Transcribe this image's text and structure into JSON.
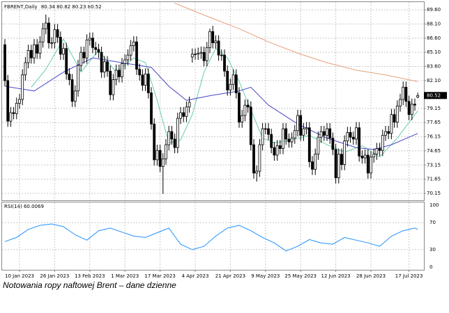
{
  "chart_data": {
    "type": "candlestick",
    "title": "FBRENT,Daily",
    "caption": "Notowania ropy naftowej Brent – dane dzienne",
    "grid": true,
    "up_color": "#ffffff",
    "down_color": "#000000",
    "ylim": [
      69.41,
      90.42
    ],
    "yticks": [
      {
        "value": 89.6,
        "label": "89.60"
      },
      {
        "value": 88.1,
        "label": "88.10"
      },
      {
        "value": 86.6,
        "label": "86.60"
      },
      {
        "value": 85.1,
        "label": "85.10"
      },
      {
        "value": 83.6,
        "label": "83.60"
      },
      {
        "value": 82.1,
        "label": "82.10"
      },
      {
        "value": 79.15,
        "label": "79.15"
      },
      {
        "value": 77.65,
        "label": "77.65"
      },
      {
        "value": 76.15,
        "label": "76.15"
      },
      {
        "value": 74.65,
        "label": "74.65"
      },
      {
        "value": 73.15,
        "label": "73.15"
      },
      {
        "value": 71.65,
        "label": "71.65"
      },
      {
        "value": 70.15,
        "label": "70.15"
      }
    ],
    "xticks": [
      {
        "value": 5,
        "label": "10 Jan 2023"
      },
      {
        "value": 17,
        "label": "26 Jan 2023"
      },
      {
        "value": 29,
        "label": "13 Feb 2023"
      },
      {
        "value": 41,
        "label": "1 Mar 2023"
      },
      {
        "value": 53,
        "label": "17 Mar 2023"
      },
      {
        "value": 65,
        "label": "4 Apr 2023"
      },
      {
        "value": 77,
        "label": "21 Apr 2023"
      },
      {
        "value": 89,
        "label": "9 May 2023"
      },
      {
        "value": 101,
        "label": "25 May 2023"
      },
      {
        "value": 113,
        "label": "12 Jun 2023"
      },
      {
        "value": 125,
        "label": "28 Jun 2023"
      },
      {
        "value": 138,
        "label": "17 Jul 2023"
      }
    ],
    "open": [
      85.9,
      82.1,
      77.8,
      78.7,
      78.6,
      79.7,
      80.1,
      82.7,
      84.0,
      85.3,
      84.5,
      85.9,
      85.0,
      86.2,
      87.6,
      88.2,
      86.1,
      86.1,
      87.5,
      86.7,
      84.9,
      85.5,
      82.8,
      82.2,
      79.9,
      81.0,
      83.7,
      85.1,
      84.5,
      86.4,
      86.6,
      85.6,
      85.4,
      85.1,
      83.0,
      84.1,
      83.1,
      80.6,
      82.2,
      83.2,
      82.5,
      83.9,
      84.3,
      84.8,
      85.8,
      86.2,
      83.3,
      82.7,
      81.6,
      82.8,
      80.8,
      77.5,
      73.7,
      74.7,
      73.0,
      73.8,
      75.3,
      76.7,
      75.9,
      75.0,
      78.1,
      78.7,
      78.3,
      79.3,
      84.6,
      84.9,
      84.9,
      85.0,
      85.1,
      84.2,
      85.6,
      87.3,
      86.1,
      86.3,
      84.8,
      84.8,
      83.1,
      81.1,
      81.7,
      82.7,
      80.8,
      77.7,
      78.4,
      79.5,
      79.3,
      75.3,
      72.3,
      72.5,
      75.3,
      77.0,
      77.0,
      76.4,
      75.0,
      74.2,
      75.2,
      74.9,
      77.0,
      75.9,
      75.6,
      76.0,
      76.8,
      78.4,
      76.3,
      77.0,
      77.1,
      73.5,
      72.7,
      74.3,
      76.1,
      76.7,
      76.3,
      77.0,
      76.0,
      74.8,
      71.8,
      74.3,
      73.2,
      75.7,
      76.6,
      76.1,
      75.9,
      77.1,
      74.1,
      73.9,
      74.2,
      72.3,
      74.0,
      74.3,
      74.9,
      74.7,
      76.3,
      76.7,
      76.5,
      78.5,
      77.7,
      79.4,
      80.1,
      81.4,
      79.9,
      78.5,
      79.6,
      80.34
    ],
    "high": [
      86.5,
      82.7,
      79.3,
      79.3,
      80.3,
      80.7,
      83.3,
      84.6,
      85.9,
      85.9,
      86.5,
      86.5,
      86.8,
      88.2,
      89.1,
      88.8,
      86.7,
      88.1,
      88.1,
      87.3,
      86.1,
      86.1,
      83.4,
      82.8,
      81.6,
      84.3,
      85.7,
      85.7,
      87.0,
      87.2,
      87.2,
      86.2,
      86.0,
      85.7,
      84.7,
      84.7,
      83.7,
      82.8,
      83.8,
      83.8,
      84.5,
      84.9,
      85.4,
      86.4,
      86.8,
      86.8,
      83.9,
      83.3,
      83.4,
      83.4,
      81.4,
      78.1,
      75.3,
      75.3,
      74.4,
      75.9,
      77.3,
      77.3,
      76.5,
      78.7,
      79.3,
      79.3,
      79.9,
      80.4,
      85.5,
      85.5,
      85.6,
      85.7,
      85.7,
      86.2,
      87.6,
      87.9,
      86.9,
      86.9,
      85.4,
      85.4,
      83.7,
      82.3,
      83.3,
      83.3,
      81.4,
      79.0,
      80.1,
      80.1,
      79.9,
      75.9,
      73.1,
      75.9,
      77.6,
      77.6,
      77.6,
      77.0,
      75.6,
      75.8,
      75.8,
      77.6,
      77.6,
      76.5,
      76.6,
      77.4,
      79.0,
      79.0,
      77.6,
      77.7,
      77.7,
      74.1,
      74.9,
      76.7,
      77.3,
      77.3,
      77.6,
      77.6,
      76.6,
      75.4,
      74.9,
      74.9,
      76.3,
      77.2,
      77.2,
      76.7,
      77.7,
      77.7,
      74.7,
      74.8,
      74.8,
      74.6,
      74.9,
      75.5,
      75.5,
      76.9,
      77.3,
      77.3,
      79.1,
      79.1,
      80.0,
      80.7,
      82.0,
      82.0,
      80.5,
      80.2,
      80.2,
      80.82
    ],
    "low": [
      81.5,
      77.2,
      77.2,
      78.0,
      78.0,
      79.1,
      79.5,
      82.1,
      83.4,
      83.9,
      83.9,
      84.4,
      84.4,
      85.6,
      87.0,
      85.5,
      85.5,
      85.5,
      86.1,
      84.3,
      84.3,
      82.2,
      81.6,
      79.3,
      79.3,
      80.4,
      83.1,
      83.9,
      83.9,
      85.8,
      85.0,
      84.8,
      84.5,
      82.4,
      82.4,
      82.5,
      80.0,
      80.0,
      81.6,
      81.9,
      81.9,
      83.3,
      83.7,
      84.2,
      85.2,
      82.7,
      82.1,
      81.0,
      81.0,
      80.2,
      76.9,
      73.1,
      73.1,
      72.4,
      70.1,
      73.2,
      74.7,
      75.3,
      74.4,
      74.4,
      77.5,
      77.7,
      77.7,
      78.7,
      84.0,
      84.3,
      84.3,
      84.4,
      83.6,
      83.6,
      85.0,
      85.5,
      85.5,
      84.2,
      84.2,
      82.5,
      80.5,
      80.5,
      81.1,
      80.2,
      77.1,
      77.1,
      77.8,
      78.7,
      74.7,
      71.7,
      71.4,
      71.9,
      74.7,
      76.4,
      75.8,
      74.4,
      73.6,
      73.6,
      74.3,
      74.3,
      75.3,
      75.0,
      75.0,
      75.4,
      76.2,
      75.7,
      75.7,
      76.4,
      72.9,
      72.1,
      72.1,
      73.7,
      75.5,
      75.7,
      75.7,
      75.4,
      74.2,
      71.2,
      71.2,
      72.6,
      72.6,
      75.1,
      75.5,
      75.3,
      75.3,
      73.5,
      73.3,
      73.3,
      71.7,
      71.7,
      73.4,
      73.7,
      74.1,
      74.1,
      75.7,
      75.9,
      75.9,
      77.1,
      77.1,
      78.8,
      79.5,
      79.3,
      77.9,
      77.9,
      78.9,
      80.23
    ],
    "close": [
      82.1,
      77.8,
      78.7,
      78.6,
      79.7,
      80.1,
      82.7,
      84.0,
      85.3,
      84.5,
      85.9,
      85.0,
      86.2,
      87.6,
      88.2,
      86.1,
      86.1,
      87.5,
      86.7,
      84.9,
      85.5,
      82.8,
      82.2,
      79.9,
      81.0,
      83.7,
      85.1,
      84.5,
      86.4,
      86.6,
      85.6,
      85.4,
      85.1,
      83.0,
      84.1,
      83.1,
      80.6,
      82.2,
      83.2,
      82.5,
      83.9,
      84.3,
      84.8,
      85.8,
      86.2,
      83.3,
      82.7,
      81.6,
      82.8,
      80.8,
      77.5,
      73.7,
      74.7,
      73.0,
      73.8,
      75.3,
      76.7,
      75.9,
      75.0,
      78.1,
      78.7,
      78.3,
      79.3,
      79.8,
      84.9,
      84.9,
      85.0,
      85.1,
      84.2,
      85.6,
      87.3,
      86.1,
      86.3,
      84.8,
      84.8,
      83.1,
      81.1,
      81.7,
      82.7,
      80.8,
      77.7,
      78.4,
      79.5,
      79.3,
      75.3,
      72.3,
      72.5,
      75.3,
      77.0,
      77.0,
      76.4,
      75.0,
      74.2,
      75.2,
      74.9,
      77.0,
      75.9,
      75.6,
      76.0,
      76.8,
      78.4,
      76.3,
      77.0,
      77.1,
      73.5,
      72.7,
      74.3,
      76.1,
      76.7,
      76.3,
      77.0,
      76.0,
      74.8,
      71.8,
      74.3,
      73.2,
      75.7,
      76.6,
      76.1,
      75.9,
      77.1,
      74.1,
      73.9,
      74.2,
      72.3,
      74.0,
      74.3,
      74.9,
      74.7,
      76.3,
      76.7,
      76.5,
      78.5,
      77.7,
      79.4,
      80.1,
      81.4,
      79.9,
      78.5,
      79.6,
      79.5,
      80.52
    ],
    "lines": [
      {
        "color": "#66cdaa",
        "x": [
          9,
          14,
          20,
          26,
          32,
          38,
          44,
          48,
          52,
          56,
          60,
          64,
          68,
          72,
          76,
          80,
          84,
          88,
          92,
          98,
          104,
          110,
          116,
          122,
          128,
          134,
          141
        ],
        "values": [
          81.4,
          83.3,
          86.5,
          83.0,
          85.3,
          83.0,
          84.5,
          84.0,
          80.0,
          75.5,
          75.8,
          78.5,
          83.0,
          85.5,
          84.5,
          82.0,
          79.0,
          76.0,
          75.5,
          75.8,
          76.3,
          75.3,
          74.5,
          75.2,
          74.0,
          76.0,
          78.9
        ]
      },
      {
        "color": "#4848c8",
        "x": [
          0,
          10,
          20,
          30,
          40,
          50,
          56,
          62,
          70,
          80,
          84,
          90,
          100,
          110,
          120,
          126,
          132,
          141
        ],
        "values": [
          81.5,
          81.0,
          83.0,
          84.5,
          84.0,
          83.5,
          81.5,
          80.0,
          80.5,
          81.0,
          81.4,
          79.5,
          77.5,
          76.0,
          75.0,
          74.8,
          75.3,
          76.5
        ]
      },
      {
        "color": "#e8a07a",
        "x": [
          58,
          70,
          80,
          90,
          100,
          110,
          120,
          130,
          141
        ],
        "values": [
          90.3,
          88.8,
          87.6,
          86.2,
          85.0,
          84.0,
          83.2,
          82.7,
          82.0
        ]
      }
    ],
    "rsi": {
      "title": "RSI(14) 60.0069",
      "color": "#1e90ff",
      "ylim": [
        0,
        100
      ],
      "yticks": [
        100,
        70,
        30,
        0
      ],
      "x": [
        0,
        4,
        8,
        12,
        16,
        20,
        24,
        28,
        32,
        36,
        40,
        44,
        48,
        52,
        56,
        60,
        64,
        68,
        72,
        76,
        80,
        84,
        88,
        92,
        96,
        100,
        104,
        108,
        112,
        116,
        120,
        124,
        128,
        132,
        136,
        140,
        141
      ],
      "values": [
        42,
        48,
        60,
        66,
        68,
        64,
        52,
        44,
        58,
        62,
        56,
        50,
        48,
        55,
        62,
        38,
        30,
        35,
        50,
        62,
        66,
        58,
        48,
        40,
        28,
        35,
        45,
        40,
        38,
        48,
        44,
        40,
        35,
        50,
        58,
        62,
        60.0069
      ]
    }
  }
}
